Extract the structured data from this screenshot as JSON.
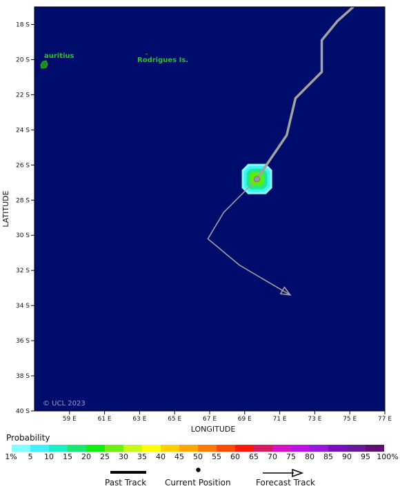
{
  "map": {
    "x_axis_title": "LONGITUDE",
    "y_axis_title": "LATITUDE",
    "copyright": "© UCL 2023",
    "ocean_color": "#000c6b",
    "land_color": "#1f8a1a",
    "label_color": "#22c81e",
    "track_color": "#a3a3a3",
    "lon_range": [
      57,
      77
    ],
    "lat_range": [
      -40,
      -17
    ],
    "lon_ticks": [
      {
        "value": 59,
        "label": "59 E"
      },
      {
        "value": 61,
        "label": "61 E"
      },
      {
        "value": 63,
        "label": "63 E"
      },
      {
        "value": 65,
        "label": "65 E"
      },
      {
        "value": 67,
        "label": "67 E"
      },
      {
        "value": 69,
        "label": "69 E"
      },
      {
        "value": 71,
        "label": "71 E"
      },
      {
        "value": 73,
        "label": "73 E"
      },
      {
        "value": 75,
        "label": "75 E"
      },
      {
        "value": 77,
        "label": "77 E"
      }
    ],
    "lat_ticks": [
      {
        "value": -18,
        "label": "18 S"
      },
      {
        "value": -20,
        "label": "20 S"
      },
      {
        "value": -22,
        "label": "22 S"
      },
      {
        "value": -24,
        "label": "24 S"
      },
      {
        "value": -26,
        "label": "26 S"
      },
      {
        "value": -28,
        "label": "28 S"
      },
      {
        "value": -30,
        "label": "30 S"
      },
      {
        "value": -32,
        "label": "32 S"
      },
      {
        "value": -34,
        "label": "34 S"
      },
      {
        "value": -36,
        "label": "36 S"
      },
      {
        "value": -38,
        "label": "38 S"
      },
      {
        "value": -40,
        "label": "40 S"
      }
    ],
    "islands": [
      {
        "name": "Mauritius",
        "label": "auritius",
        "lon": 57.55,
        "lat": -20.3
      },
      {
        "name": "Rodrigues Is.",
        "label": "Rodrigues Is.",
        "lon": 63.4,
        "lat": -19.7
      }
    ],
    "past_track": [
      [
        75.2,
        -17.0
      ],
      [
        74.3,
        -17.8
      ],
      [
        73.4,
        -18.9
      ],
      [
        73.4,
        -20.7
      ],
      [
        71.9,
        -22.2
      ],
      [
        71.4,
        -24.3
      ],
      [
        69.7,
        -26.8
      ]
    ],
    "current_position": {
      "lon": 69.7,
      "lat": -26.8
    },
    "forecast_track": [
      [
        69.7,
        -26.8
      ],
      [
        67.8,
        -28.7
      ],
      [
        66.9,
        -30.2
      ],
      [
        68.7,
        -31.7
      ],
      [
        71.6,
        -33.4
      ]
    ],
    "probability_area": {
      "center": {
        "lon": 69.7,
        "lat": -26.8
      },
      "rings": [
        {
          "range": "1-5%",
          "color": "#82ffff"
        },
        {
          "range": "5-10%",
          "color": "#40f0ff"
        },
        {
          "range": "15-20%",
          "color": "#20e890"
        },
        {
          "range": "25-30%",
          "color": "#5cf000"
        }
      ]
    }
  },
  "probability": {
    "title": "Probability",
    "colors": [
      "#82ffff",
      "#40f0ff",
      "#18f0c8",
      "#18e870",
      "#10f010",
      "#70f010",
      "#c8f818",
      "#ffff00",
      "#ffd000",
      "#ffa800",
      "#ff7800",
      "#ff4800",
      "#ff1800",
      "#d81860",
      "#d810c8",
      "#c010e8",
      "#9818e0",
      "#7810c0",
      "#681898",
      "#601070"
    ],
    "labels": [
      "1%",
      "5",
      "10",
      "15",
      "20",
      "25",
      "30",
      "35",
      "40",
      "45",
      "50",
      "55",
      "60",
      "65",
      "70",
      "75",
      "80",
      "85",
      "90",
      "95",
      "100%"
    ]
  },
  "legend": {
    "past_track": "Past Track",
    "current_position": "Current Position",
    "forecast_track": "Forecast Track"
  }
}
